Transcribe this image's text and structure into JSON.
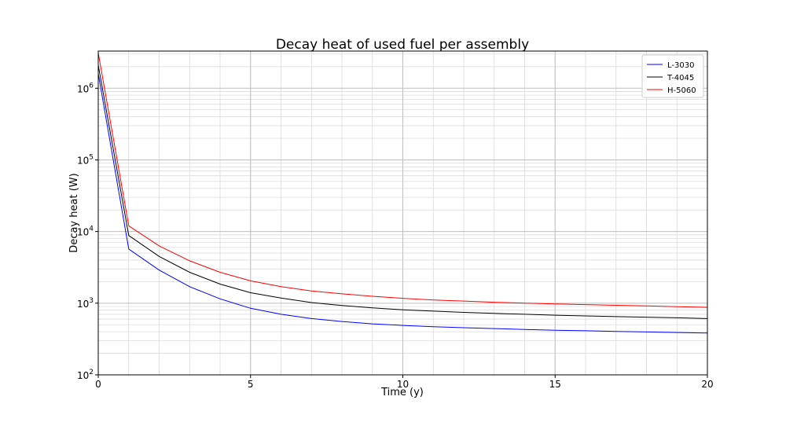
{
  "chart_data": {
    "type": "line",
    "title": "Decay heat of used fuel per assembly",
    "xlabel": "Time (y)",
    "ylabel": "Decay heat (W)",
    "xlim": [
      0,
      20
    ],
    "ylim": [
      100,
      3300000
    ],
    "yscale": "log",
    "grid": true,
    "grid_minor": true,
    "legend_position": "top-right",
    "x_ticks": [
      0,
      5,
      10,
      15,
      20
    ],
    "y_ticks": [
      {
        "value": 100,
        "base": "10",
        "exp": "2"
      },
      {
        "value": 1000,
        "base": "10",
        "exp": "3"
      },
      {
        "value": 10000,
        "base": "10",
        "exp": "4"
      },
      {
        "value": 100000,
        "base": "10",
        "exp": "5"
      },
      {
        "value": 1000000,
        "base": "10",
        "exp": "6"
      }
    ],
    "x": [
      0,
      1,
      2,
      3,
      4,
      5,
      6,
      7,
      8,
      9,
      10,
      11,
      12,
      13,
      14,
      15,
      16,
      17,
      18,
      19,
      20
    ],
    "series": [
      {
        "name": "L-3030",
        "color": "#0000ff",
        "values": [
          1600000,
          5700,
          2900,
          1700,
          1150,
          850,
          700,
          610,
          555,
          515,
          490,
          470,
          455,
          443,
          430,
          420,
          412,
          404,
          397,
          390,
          383
        ]
      },
      {
        "name": "T-4045",
        "color": "#000000",
        "values": [
          2100000,
          8800,
          4500,
          2700,
          1850,
          1400,
          1180,
          1020,
          930,
          860,
          810,
          775,
          745,
          720,
          700,
          680,
          665,
          650,
          638,
          625,
          610
        ]
      },
      {
        "name": "H-5060",
        "color": "#ff0000",
        "values": [
          3100000,
          12000,
          6300,
          3900,
          2700,
          2050,
          1700,
          1480,
          1350,
          1250,
          1170,
          1110,
          1070,
          1030,
          1000,
          975,
          955,
          935,
          915,
          895,
          875
        ]
      }
    ]
  }
}
